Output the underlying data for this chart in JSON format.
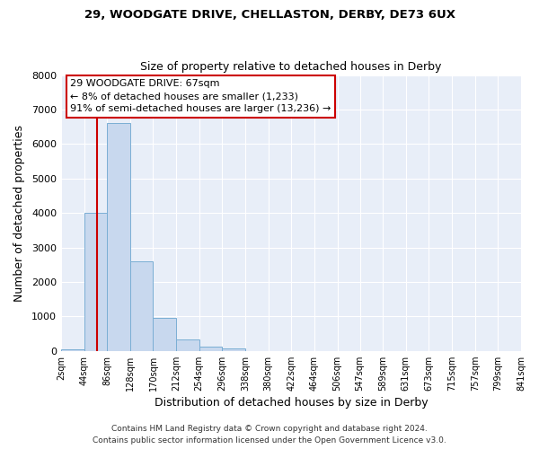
{
  "title1": "29, WOODGATE DRIVE, CHELLASTON, DERBY, DE73 6UX",
  "title2": "Size of property relative to detached houses in Derby",
  "xlabel": "Distribution of detached houses by size in Derby",
  "ylabel": "Number of detached properties",
  "bin_edges": [
    2,
    44,
    86,
    128,
    170,
    212,
    254,
    296,
    338,
    380,
    422,
    464,
    506,
    547,
    589,
    631,
    673,
    715,
    757,
    799,
    841
  ],
  "bin_labels": [
    "2sqm",
    "44sqm",
    "86sqm",
    "128sqm",
    "170sqm",
    "212sqm",
    "254sqm",
    "296sqm",
    "338sqm",
    "380sqm",
    "422sqm",
    "464sqm",
    "506sqm",
    "547sqm",
    "589sqm",
    "631sqm",
    "673sqm",
    "715sqm",
    "757sqm",
    "799sqm",
    "841sqm"
  ],
  "bar_heights": [
    50,
    4000,
    6600,
    2600,
    950,
    330,
    130,
    80,
    0,
    0,
    0,
    0,
    0,
    0,
    0,
    0,
    0,
    0,
    0,
    0
  ],
  "bar_color": "#c8d8ee",
  "bar_edgecolor": "#7aaed4",
  "vline_x": 67,
  "vline_color": "#cc0000",
  "annotation_title": "29 WOODGATE DRIVE: 67sqm",
  "annotation_line1": "← 8% of detached houses are smaller (1,233)",
  "annotation_line2": "91% of semi-detached houses are larger (13,236) →",
  "annotation_box_facecolor": "#ffffff",
  "annotation_box_edgecolor": "#cc0000",
  "ylim": [
    0,
    8000
  ],
  "yticks": [
    0,
    1000,
    2000,
    3000,
    4000,
    5000,
    6000,
    7000,
    8000
  ],
  "bg_color": "#e8eef8",
  "grid_color": "#ffffff",
  "footer1": "Contains HM Land Registry data © Crown copyright and database right 2024.",
  "footer2": "Contains public sector information licensed under the Open Government Licence v3.0."
}
